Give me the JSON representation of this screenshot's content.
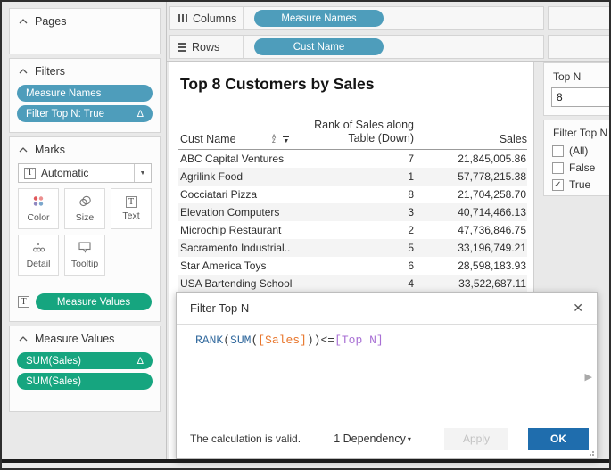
{
  "sidebar": {
    "pages": {
      "title": "Pages"
    },
    "filters": {
      "title": "Filters",
      "pills": [
        {
          "label": "Measure Names",
          "has_delta": false
        },
        {
          "label": "Filter Top N: True",
          "has_delta": true
        }
      ]
    },
    "marks": {
      "title": "Marks",
      "mark_type_selector": "Automatic",
      "buttons": [
        {
          "label": "Color"
        },
        {
          "label": "Size"
        },
        {
          "label": "Text"
        },
        {
          "label": "Detail"
        },
        {
          "label": "Tooltip"
        }
      ],
      "text_shelf_pill": "Measure Values"
    },
    "measure_values": {
      "title": "Measure Values",
      "pills": [
        {
          "label": "SUM(Sales)",
          "has_delta": true
        },
        {
          "label": "SUM(Sales)",
          "has_delta": false
        }
      ]
    }
  },
  "shelves": {
    "columns": {
      "label": "Columns",
      "pill": "Measure Names"
    },
    "rows": {
      "label": "Rows",
      "pill": "Cust Name"
    }
  },
  "sheet": {
    "title": "Top 8 Customers by Sales",
    "table": {
      "headers": {
        "cust_name": "Cust Name",
        "rank": "Rank of Sales along Table (Down)",
        "sales": "Sales"
      },
      "rows": [
        {
          "cust_name": "ABC Capital Ventures",
          "rank": "7",
          "sales": "21,845,005.86"
        },
        {
          "cust_name": "Agrilink Food",
          "rank": "1",
          "sales": "57,778,215.38"
        },
        {
          "cust_name": "Cocciatari Pizza",
          "rank": "8",
          "sales": "21,704,258.70"
        },
        {
          "cust_name": "Elevation Computers",
          "rank": "3",
          "sales": "40,714,466.13"
        },
        {
          "cust_name": "Microchip Restaurant",
          "rank": "2",
          "sales": "47,736,846.75"
        },
        {
          "cust_name": "Sacramento Industrial..",
          "rank": "5",
          "sales": "33,196,749.21"
        },
        {
          "cust_name": "Star America Toys",
          "rank": "6",
          "sales": "28,598,183.93"
        },
        {
          "cust_name": "USA Bartending School",
          "rank": "4",
          "sales": "33,522,687.11"
        }
      ]
    }
  },
  "right_panel": {
    "parameter": {
      "title": "Top N",
      "value": "8"
    },
    "filter": {
      "title": "Filter Top N",
      "options": [
        {
          "label": "(All)",
          "checked": false
        },
        {
          "label": "False",
          "checked": false
        },
        {
          "label": "True",
          "checked": true
        }
      ]
    }
  },
  "dialog": {
    "title": "Filter Top N",
    "formula": [
      {
        "text": "RANK",
        "type": "function"
      },
      {
        "text": "(",
        "type": "plain"
      },
      {
        "text": "SUM",
        "type": "function"
      },
      {
        "text": "(",
        "type": "plain"
      },
      {
        "text": "[Sales]",
        "type": "field"
      },
      {
        "text": "))",
        "type": "plain"
      },
      {
        "text": "<=",
        "type": "plain"
      },
      {
        "text": "[Top N]",
        "type": "parameter"
      }
    ],
    "status": "The calculation is valid.",
    "dependency_label": "1 Dependency",
    "apply_label": "Apply",
    "ok_label": "OK"
  },
  "icons": {
    "delta": "Δ",
    "caret_down": "▼",
    "small_caret_down": "▾",
    "close": "✕",
    "check": "✓",
    "expand": "▶"
  },
  "colors": {
    "dimension_pill": "#4E9DBB",
    "measure_pill": "#16A57F",
    "ok_button": "#1F6DAD",
    "token_function": "#336A9E",
    "token_field": "#E8762C",
    "token_parameter": "#A86FD4"
  }
}
